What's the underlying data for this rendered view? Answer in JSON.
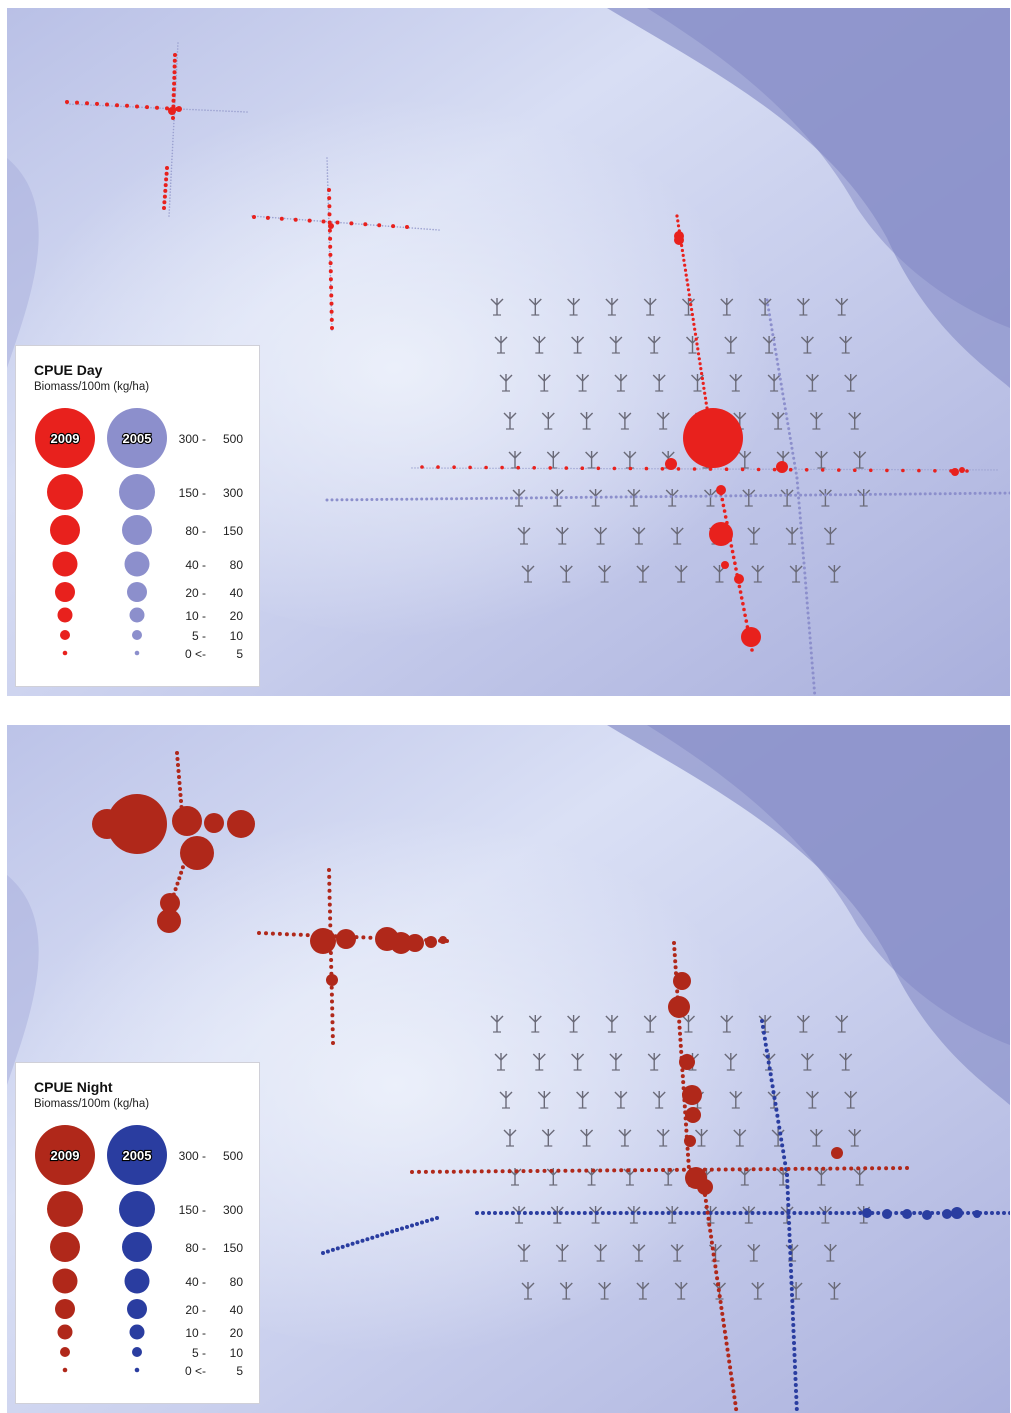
{
  "colors": {
    "day_2009": "#e8211d",
    "day_2005": "#8c8fcc",
    "night_2009": "#b0281a",
    "night_2005": "#2a3da0",
    "turbine": "#6a6a78",
    "sea_light": "#dfe6f6",
    "sea_dark": "#8e94cc"
  },
  "panels": [
    {
      "legend": {
        "title": "CPUE Day",
        "subtitle": "Biomass/100m (kg/ha)",
        "series": [
          {
            "label": "2009",
            "color": "#e8211d"
          },
          {
            "label": "2005",
            "color": "#8c8fcc"
          }
        ],
        "classes": [
          {
            "lo": "300 -",
            "hi": "500"
          },
          {
            "lo": "150 -",
            "hi": "300"
          },
          {
            "lo": "80 -",
            "hi": "150"
          },
          {
            "lo": "40 -",
            "hi": "80"
          },
          {
            "lo": "20 -",
            "hi": "40"
          },
          {
            "lo": "10 -",
            "hi": "20"
          },
          {
            "lo": "5 -",
            "hi": "10"
          },
          {
            "lo": "0 <-",
            "hi": "5"
          }
        ]
      }
    },
    {
      "legend": {
        "title": "CPUE Night",
        "subtitle": "Biomass/100m (kg/ha)",
        "series": [
          {
            "label": "2009",
            "color": "#b0281a"
          },
          {
            "label": "2005",
            "color": "#2a3da0"
          }
        ],
        "classes": [
          {
            "lo": "300 -",
            "hi": "500"
          },
          {
            "lo": "150 -",
            "hi": "300"
          },
          {
            "lo": "80 -",
            "hi": "150"
          },
          {
            "lo": "40 -",
            "hi": "80"
          },
          {
            "lo": "20 -",
            "hi": "40"
          },
          {
            "lo": "10 -",
            "hi": "20"
          },
          {
            "lo": "5 -",
            "hi": "10"
          },
          {
            "lo": "0 <-",
            "hi": "5"
          }
        ]
      }
    }
  ]
}
